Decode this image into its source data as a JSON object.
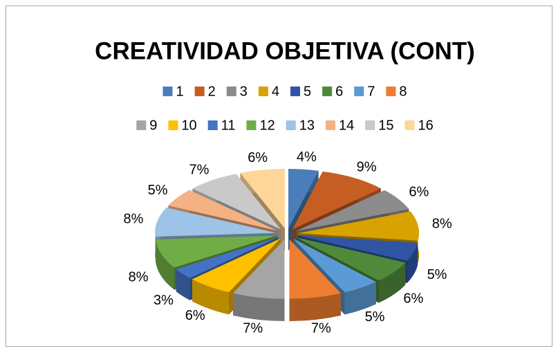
{
  "chart_data": {
    "type": "pie",
    "title": "CREATIVIDAD OBJETIVA (CONT)",
    "categories": [
      "1",
      "2",
      "3",
      "4",
      "5",
      "6",
      "7",
      "8",
      "9",
      "10",
      "11",
      "12",
      "13",
      "14",
      "15",
      "16"
    ],
    "values": [
      4,
      9,
      6,
      8,
      5,
      6,
      5,
      7,
      7,
      6,
      3,
      8,
      8,
      5,
      7,
      6
    ],
    "value_labels": [
      "4%",
      "9%",
      "6%",
      "8%",
      "5%",
      "6%",
      "5%",
      "7%",
      "7%",
      "6%",
      "3%",
      "8%",
      "8%",
      "5%",
      "7%",
      "6%"
    ],
    "colors": [
      "#4a7ebb",
      "#c65d22",
      "#8c8c8c",
      "#d8a200",
      "#2f55a4",
      "#4f8a3a",
      "#5b9bd5",
      "#ed7d31",
      "#a5a5a5",
      "#ffc000",
      "#4472c4",
      "#70ad47",
      "#9dc3e6",
      "#f4b183",
      "#c9c9c9",
      "#ffd699"
    ],
    "legend": "top"
  }
}
